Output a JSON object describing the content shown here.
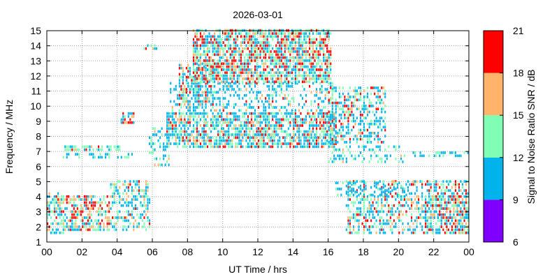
{
  "chart_data": {
    "type": "heatmap",
    "title": "2026-03-01",
    "xlabel": "UT Time / hrs",
    "ylabel": "Frequency / MHz",
    "colorbar_label": "Signal to Noise Ratio SNR / dB",
    "xlim": [
      0,
      24
    ],
    "ylim": [
      1,
      15
    ],
    "x_ticks": [
      "00",
      "02",
      "04",
      "06",
      "08",
      "10",
      "12",
      "14",
      "16",
      "18",
      "20",
      "22",
      "00"
    ],
    "y_ticks": [
      "1",
      "2",
      "3",
      "4",
      "5",
      "6",
      "7",
      "8",
      "9",
      "10",
      "11",
      "12",
      "13",
      "14",
      "15"
    ],
    "grid": true,
    "colorbar": {
      "ticks": [
        "6",
        "9",
        "12",
        "15",
        "18",
        "21"
      ],
      "bins": [
        {
          "from": 6,
          "to": 9,
          "color": "#8000ff"
        },
        {
          "from": 9,
          "to": 12,
          "color": "#00b4eb"
        },
        {
          "from": 12,
          "to": 15,
          "color": "#80ffb4"
        },
        {
          "from": 15,
          "to": 18,
          "color": "#ffb469"
        },
        {
          "from": 18,
          "to": 21,
          "color": "#ff0000"
        }
      ]
    },
    "clusters": [
      {
        "t": [
          0.0,
          1.0
        ],
        "f": [
          1.5,
          4.3
        ],
        "density": 0.55,
        "dist": [
          0,
          0.45,
          0.3,
          0.15,
          0.1
        ]
      },
      {
        "t": [
          1.0,
          3.6
        ],
        "f": [
          1.7,
          4.1
        ],
        "density": 0.6,
        "dist": [
          0,
          0.25,
          0.25,
          0.25,
          0.25
        ]
      },
      {
        "t": [
          3.6,
          5.9
        ],
        "f": [
          1.7,
          5.0
        ],
        "density": 0.45,
        "dist": [
          0,
          0.5,
          0.3,
          0.12,
          0.08
        ]
      },
      {
        "t": [
          1.0,
          4.2
        ],
        "f": [
          7.0,
          7.3
        ],
        "density": 0.7,
        "dist": [
          0,
          0.15,
          0.7,
          0.05,
          0.1
        ]
      },
      {
        "t": [
          0.9,
          5.0
        ],
        "f": [
          6.5,
          6.9
        ],
        "density": 0.35,
        "dist": [
          0,
          0.7,
          0.3,
          0,
          0
        ]
      },
      {
        "t": [
          4.2,
          5.0
        ],
        "f": [
          8.8,
          9.6
        ],
        "density": 0.5,
        "dist": [
          0,
          0.3,
          0.1,
          0.1,
          0.5
        ]
      },
      {
        "t": [
          5.5,
          6.3
        ],
        "f": [
          13.7,
          14.1
        ],
        "density": 0.5,
        "dist": [
          0,
          0.5,
          0.3,
          0.1,
          0.1
        ]
      },
      {
        "t": [
          5.8,
          7.0
        ],
        "f": [
          6.0,
          8.5
        ],
        "density": 0.3,
        "dist": [
          0,
          0.6,
          0.3,
          0.1,
          0
        ]
      },
      {
        "t": [
          6.8,
          16.5
        ],
        "f": [
          7.2,
          9.6
        ],
        "density": 0.7,
        "dist": [
          0,
          0.45,
          0.3,
          0.13,
          0.12
        ]
      },
      {
        "t": [
          7.0,
          16.3
        ],
        "f": [
          9.6,
          11.5
        ],
        "density": 0.35,
        "dist": [
          0,
          0.65,
          0.2,
          0.1,
          0.05
        ]
      },
      {
        "t": [
          7.5,
          9.5
        ],
        "f": [
          10.0,
          12.8
        ],
        "density": 0.55,
        "dist": [
          0,
          0.4,
          0.25,
          0.15,
          0.2
        ]
      },
      {
        "t": [
          8.3,
          16.2
        ],
        "f": [
          11.5,
          15.0
        ],
        "density": 0.75,
        "dist": [
          0,
          0.3,
          0.3,
          0.15,
          0.25
        ]
      },
      {
        "t": [
          16.0,
          19.3
        ],
        "f": [
          7.5,
          11.2
        ],
        "density": 0.45,
        "dist": [
          0,
          0.5,
          0.25,
          0.1,
          0.15
        ]
      },
      {
        "t": [
          16.0,
          20.5
        ],
        "f": [
          6.2,
          7.4
        ],
        "density": 0.3,
        "dist": [
          0,
          0.55,
          0.4,
          0.05,
          0
        ]
      },
      {
        "t": [
          20.5,
          24.0
        ],
        "f": [
          6.6,
          6.9
        ],
        "density": 0.45,
        "dist": [
          0,
          0.4,
          0.4,
          0.2,
          0
        ]
      },
      {
        "t": [
          17.0,
          24.0
        ],
        "f": [
          1.5,
          5.0
        ],
        "density": 0.45,
        "dist": [
          0,
          0.45,
          0.25,
          0.15,
          0.15
        ]
      },
      {
        "t": [
          21.5,
          24.0
        ],
        "f": [
          1.5,
          4.0
        ],
        "density": 0.55,
        "dist": [
          0,
          0.35,
          0.25,
          0.15,
          0.25
        ]
      },
      {
        "t": [
          16.3,
          20.5
        ],
        "f": [
          4.0,
          5.0
        ],
        "density": 0.3,
        "dist": [
          0,
          0.8,
          0.2,
          0,
          0
        ]
      }
    ]
  }
}
